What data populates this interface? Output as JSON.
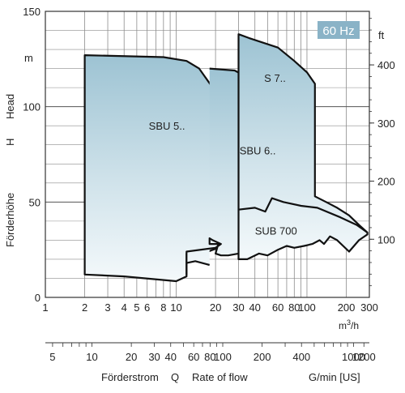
{
  "chart_data": {
    "type": "area",
    "badge": "60 Hz",
    "x_scale": "log",
    "x_unit": "m³/h",
    "xlim": [
      1,
      300
    ],
    "x_ticks": [
      1,
      2,
      3,
      4,
      5,
      6,
      8,
      10,
      20,
      30,
      40,
      60,
      80,
      100,
      200,
      300
    ],
    "x_tick_labels": [
      "1",
      "2",
      "3",
      "4",
      "5",
      "6",
      "8",
      "10",
      "20",
      "30",
      "40",
      "60",
      "80",
      "100",
      "200",
      "300"
    ],
    "ylim": [
      0,
      150
    ],
    "y_ticks": [
      0,
      50,
      100,
      150
    ],
    "y_unit": "m",
    "y_label_de": "Förderhöhe",
    "y_label_h": "H",
    "y_label_en": "Head",
    "y2_unit": "ft",
    "y2_ticks": [
      100,
      200,
      300,
      400
    ],
    "gpm_axis": {
      "unit": "G/min [US]",
      "ticks": [
        5,
        10,
        20,
        30,
        40,
        60,
        80,
        100,
        200,
        400,
        1000,
        1200
      ],
      "labels": [
        "5",
        "10",
        "20",
        "30",
        "40",
        "60",
        "80",
        "100",
        "200",
        "400",
        "1000",
        "1200"
      ]
    },
    "x_label_de": "Förderstrom",
    "x_label_q": "Q",
    "x_label_en": "Rate of flow",
    "series": [
      {
        "name": "SBU 5..",
        "label_at": [
          8.5,
          88
        ],
        "outline": [
          [
            2,
            127
          ],
          [
            8,
            126
          ],
          [
            12,
            124
          ],
          [
            15,
            120
          ],
          [
            19,
            110
          ],
          [
            21,
            96
          ],
          [
            21,
            26
          ],
          [
            16,
            23
          ],
          [
            12,
            23
          ],
          [
            12,
            11
          ],
          [
            10,
            8.5
          ],
          [
            4,
            11
          ],
          [
            2,
            12
          ]
        ]
      },
      {
        "name": "SBU 6..",
        "label_at": [
          42,
          75
        ],
        "outline": [
          [
            18,
            120
          ],
          [
            28,
            119
          ],
          [
            36,
            115
          ],
          [
            45,
            107
          ],
          [
            52,
            97
          ],
          [
            57,
            88
          ],
          [
            57,
            28
          ],
          [
            52,
            27
          ],
          [
            45,
            25
          ],
          [
            38,
            24
          ],
          [
            32,
            25
          ],
          [
            30,
            23
          ],
          [
            25,
            22
          ],
          [
            22,
            22
          ],
          [
            20,
            23
          ],
          [
            21,
            28
          ],
          [
            18,
            28
          ],
          [
            18,
            31
          ],
          [
            19,
            30
          ],
          [
            22,
            28
          ],
          [
            20,
            26
          ],
          [
            12,
            24
          ],
          [
            12,
            12
          ],
          [
            12,
            18
          ],
          [
            14,
            19
          ],
          [
            18,
            17
          ]
        ]
      },
      {
        "name": "S 7..",
        "label_at": [
          57,
          113
        ],
        "outline": [
          [
            30,
            138
          ],
          [
            36,
            136
          ],
          [
            60,
            131
          ],
          [
            80,
            124
          ],
          [
            100,
            118
          ],
          [
            115,
            112
          ],
          [
            115,
            53
          ],
          [
            140,
            50
          ],
          [
            170,
            47
          ],
          [
            210,
            43
          ],
          [
            250,
            38
          ],
          [
            290,
            34
          ],
          [
            290,
            33
          ],
          [
            250,
            30
          ],
          [
            210,
            24
          ],
          [
            170,
            30
          ],
          [
            150,
            32
          ],
          [
            135,
            28
          ],
          [
            125,
            30
          ],
          [
            110,
            28
          ],
          [
            95,
            27
          ],
          [
            80,
            26
          ],
          [
            70,
            27
          ],
          [
            60,
            25
          ],
          [
            50,
            22
          ],
          [
            43,
            23
          ],
          [
            35,
            20
          ],
          [
            30,
            20
          ]
        ]
      },
      {
        "name": "SUB 700",
        "label_at": [
          58,
          33
        ],
        "outline": [
          [
            30,
            46
          ],
          [
            40,
            47
          ],
          [
            48,
            45
          ],
          [
            54,
            52
          ],
          [
            66,
            50
          ],
          [
            90,
            48
          ],
          [
            120,
            47
          ],
          [
            180,
            42
          ],
          [
            240,
            38
          ],
          [
            290,
            34
          ]
        ]
      }
    ]
  }
}
